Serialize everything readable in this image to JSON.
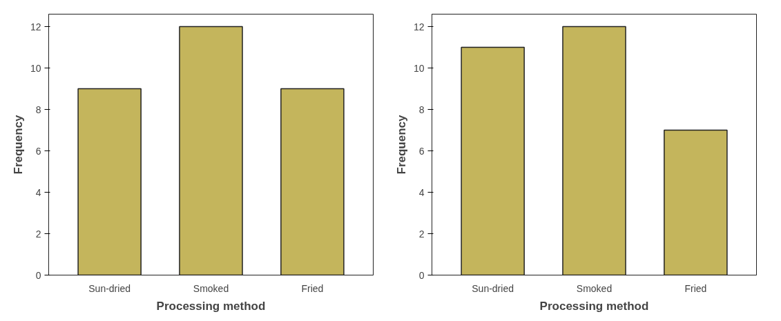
{
  "chart_data": [
    {
      "type": "bar",
      "categories": [
        "Sun-dried",
        "Smoked",
        "Fried"
      ],
      "values": [
        9,
        12,
        9
      ],
      "color": "#c4b55c",
      "xlabel": "Processing method",
      "ylabel": "Frequency",
      "ylim": [
        0,
        12.6
      ],
      "yticks": [
        0,
        2,
        4,
        6,
        8,
        10,
        12
      ],
      "grid": false
    },
    {
      "type": "bar",
      "categories": [
        "Sun-dried",
        "Smoked",
        "Fried"
      ],
      "values": [
        11,
        12,
        7
      ],
      "color": "#c4b55c",
      "xlabel": "Processing method",
      "ylabel": "Frequency",
      "ylim": [
        0,
        12.6
      ],
      "yticks": [
        0,
        2,
        4,
        6,
        8,
        10,
        12
      ],
      "grid": false
    }
  ]
}
